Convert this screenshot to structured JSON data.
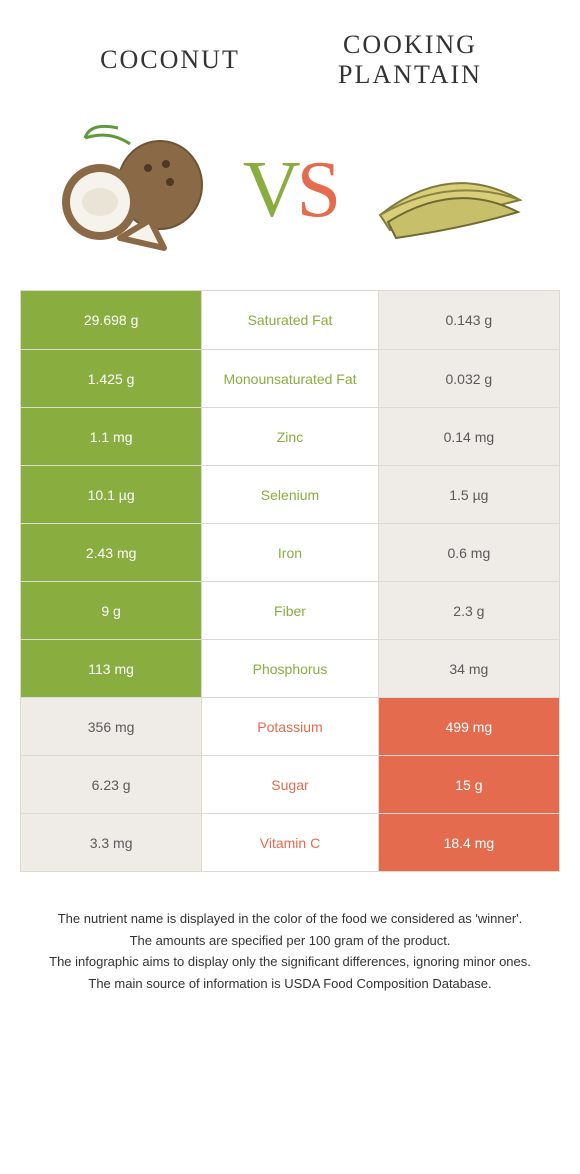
{
  "colors": {
    "green": "#8aad3f",
    "orange": "#e56b4e",
    "neutral_bg": "#efece7",
    "border": "#ddd9d3",
    "text": "#333333",
    "white": "#ffffff"
  },
  "food_left": {
    "name": "Coconut"
  },
  "food_right": {
    "name_line1": "Cooking",
    "name_line2": "plantain"
  },
  "vs_text": {
    "v": "V",
    "s": "S"
  },
  "rows": [
    {
      "nutrient": "Saturated Fat",
      "left": "29.698 g",
      "right": "0.143 g",
      "winner": "left"
    },
    {
      "nutrient": "Monounsaturated Fat",
      "left": "1.425 g",
      "right": "0.032 g",
      "winner": "left"
    },
    {
      "nutrient": "Zinc",
      "left": "1.1 mg",
      "right": "0.14 mg",
      "winner": "left"
    },
    {
      "nutrient": "Selenium",
      "left": "10.1 µg",
      "right": "1.5 µg",
      "winner": "left"
    },
    {
      "nutrient": "Iron",
      "left": "2.43 mg",
      "right": "0.6 mg",
      "winner": "left"
    },
    {
      "nutrient": "Fiber",
      "left": "9 g",
      "right": "2.3 g",
      "winner": "left"
    },
    {
      "nutrient": "Phosphorus",
      "left": "113 mg",
      "right": "34 mg",
      "winner": "left"
    },
    {
      "nutrient": "Potassium",
      "left": "356 mg",
      "right": "499 mg",
      "winner": "right"
    },
    {
      "nutrient": "Sugar",
      "left": "6.23 g",
      "right": "15 g",
      "winner": "right"
    },
    {
      "nutrient": "Vitamin C",
      "left": "3.3 mg",
      "right": "18.4 mg",
      "winner": "right"
    }
  ],
  "footnotes": [
    "The nutrient name is displayed in the color of the food we considered as 'winner'.",
    "The amounts are specified per 100 gram of the product.",
    "The infographic aims to display only the significant differences, ignoring minor ones.",
    "The main source of information is USDA Food Composition Database."
  ]
}
